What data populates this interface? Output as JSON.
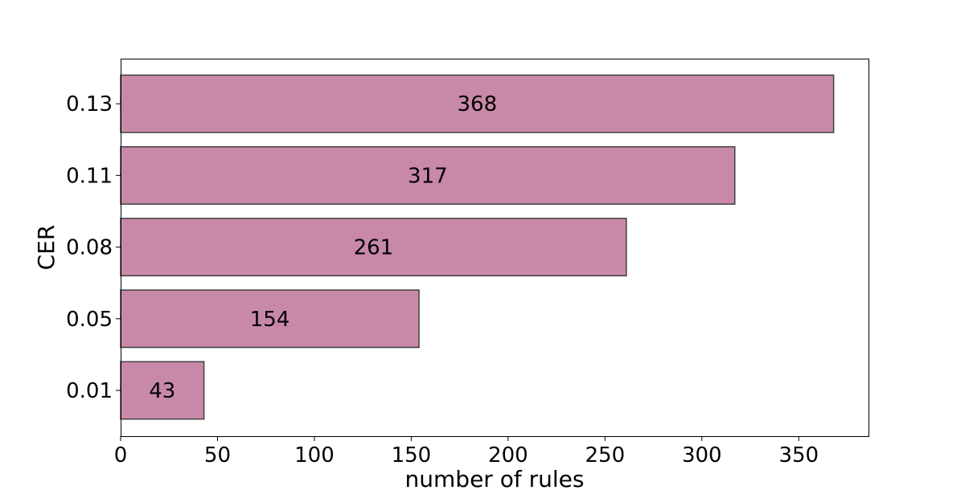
{
  "chart_data": {
    "type": "bar",
    "orientation": "horizontal",
    "categories": [
      "0.01",
      "0.05",
      "0.08",
      "0.11",
      "0.13"
    ],
    "values": [
      43,
      154,
      261,
      317,
      368
    ],
    "data_labels": [
      "43",
      "154",
      "261",
      "317",
      "368"
    ],
    "title": "",
    "xlabel": "number of rules",
    "ylabel": "CER",
    "xlim": [
      0,
      386
    ],
    "x_ticks": [
      0,
      50,
      100,
      150,
      200,
      250,
      300,
      350
    ],
    "grid": false,
    "legend": "none",
    "bar_color": "#c889a9",
    "bar_edge_color": "#3f3f3f"
  }
}
